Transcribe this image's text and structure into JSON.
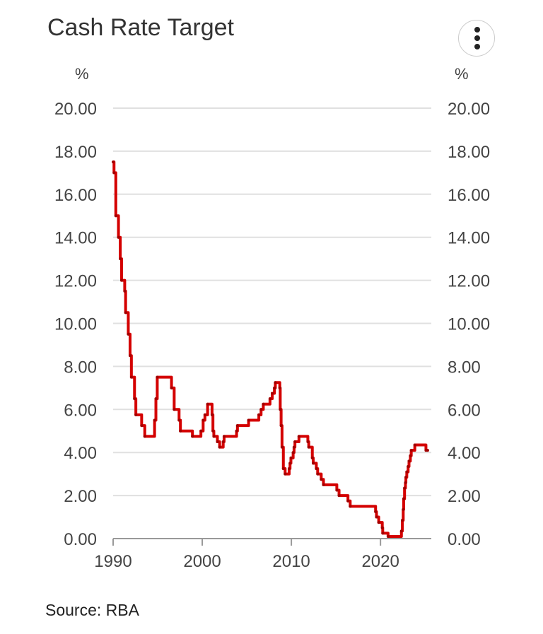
{
  "chart_data": {
    "type": "line",
    "title": "Cash Rate Target",
    "ylabel_left": "%",
    "ylabel_right": "%",
    "source": "Source: RBA",
    "xlim": [
      1990,
      2025.7
    ],
    "ylim": [
      0,
      20
    ],
    "x_ticks": [
      "1990",
      "2000",
      "2010",
      "2020"
    ],
    "y_ticks": [
      "0.00",
      "2.00",
      "4.00",
      "6.00",
      "8.00",
      "10.00",
      "12.00",
      "14.00",
      "16.00",
      "18.00",
      "20.00"
    ],
    "grid": true,
    "line_color": "#d40000",
    "step": true,
    "points": [
      [
        1990.0,
        17.5
      ],
      [
        1990.1,
        17.0
      ],
      [
        1990.3,
        15.0
      ],
      [
        1990.6,
        14.0
      ],
      [
        1990.8,
        13.0
      ],
      [
        1990.95,
        12.0
      ],
      [
        1991.3,
        11.5
      ],
      [
        1991.4,
        10.5
      ],
      [
        1991.7,
        9.5
      ],
      [
        1991.9,
        8.5
      ],
      [
        1992.05,
        7.5
      ],
      [
        1992.4,
        6.5
      ],
      [
        1992.55,
        5.75
      ],
      [
        1993.2,
        5.25
      ],
      [
        1993.55,
        4.75
      ],
      [
        1994.65,
        5.5
      ],
      [
        1994.8,
        6.5
      ],
      [
        1994.95,
        7.5
      ],
      [
        1996.55,
        7.0
      ],
      [
        1996.85,
        6.0
      ],
      [
        1997.4,
        5.5
      ],
      [
        1997.55,
        5.0
      ],
      [
        1998.9,
        4.75
      ],
      [
        1999.85,
        5.0
      ],
      [
        2000.1,
        5.5
      ],
      [
        2000.3,
        5.75
      ],
      [
        2000.6,
        6.25
      ],
      [
        2001.1,
        5.75
      ],
      [
        2001.2,
        5.0
      ],
      [
        2001.3,
        4.75
      ],
      [
        2001.7,
        4.5
      ],
      [
        2001.95,
        4.25
      ],
      [
        2002.35,
        4.5
      ],
      [
        2002.45,
        4.75
      ],
      [
        2003.85,
        5.0
      ],
      [
        2003.95,
        5.25
      ],
      [
        2005.2,
        5.5
      ],
      [
        2006.35,
        5.75
      ],
      [
        2006.6,
        6.0
      ],
      [
        2006.85,
        6.25
      ],
      [
        2007.6,
        6.5
      ],
      [
        2007.85,
        6.75
      ],
      [
        2008.1,
        7.0
      ],
      [
        2008.2,
        7.25
      ],
      [
        2008.7,
        7.0
      ],
      [
        2008.75,
        6.0
      ],
      [
        2008.85,
        5.25
      ],
      [
        2008.95,
        4.25
      ],
      [
        2009.1,
        3.25
      ],
      [
        2009.3,
        3.0
      ],
      [
        2009.75,
        3.25
      ],
      [
        2009.85,
        3.5
      ],
      [
        2009.95,
        3.75
      ],
      [
        2010.2,
        4.0
      ],
      [
        2010.3,
        4.25
      ],
      [
        2010.4,
        4.5
      ],
      [
        2010.85,
        4.75
      ],
      [
        2011.85,
        4.5
      ],
      [
        2011.95,
        4.25
      ],
      [
        2012.35,
        3.75
      ],
      [
        2012.45,
        3.5
      ],
      [
        2012.8,
        3.25
      ],
      [
        2012.95,
        3.0
      ],
      [
        2013.35,
        2.75
      ],
      [
        2013.6,
        2.5
      ],
      [
        2015.1,
        2.25
      ],
      [
        2015.35,
        2.0
      ],
      [
        2016.35,
        1.75
      ],
      [
        2016.6,
        1.5
      ],
      [
        2019.45,
        1.25
      ],
      [
        2019.55,
        1.0
      ],
      [
        2019.8,
        0.75
      ],
      [
        2020.2,
        0.5
      ],
      [
        2020.25,
        0.25
      ],
      [
        2020.85,
        0.1
      ],
      [
        2022.35,
        0.35
      ],
      [
        2022.45,
        0.85
      ],
      [
        2022.55,
        1.35
      ],
      [
        2022.6,
        1.85
      ],
      [
        2022.7,
        2.35
      ],
      [
        2022.8,
        2.6
      ],
      [
        2022.85,
        2.85
      ],
      [
        2022.95,
        3.1
      ],
      [
        2023.1,
        3.35
      ],
      [
        2023.2,
        3.6
      ],
      [
        2023.35,
        3.85
      ],
      [
        2023.45,
        4.1
      ],
      [
        2023.85,
        4.35
      ],
      [
        2025.1,
        4.1
      ],
      [
        2025.3,
        4.1
      ]
    ]
  },
  "menu_icon": "more-vertical-icon"
}
